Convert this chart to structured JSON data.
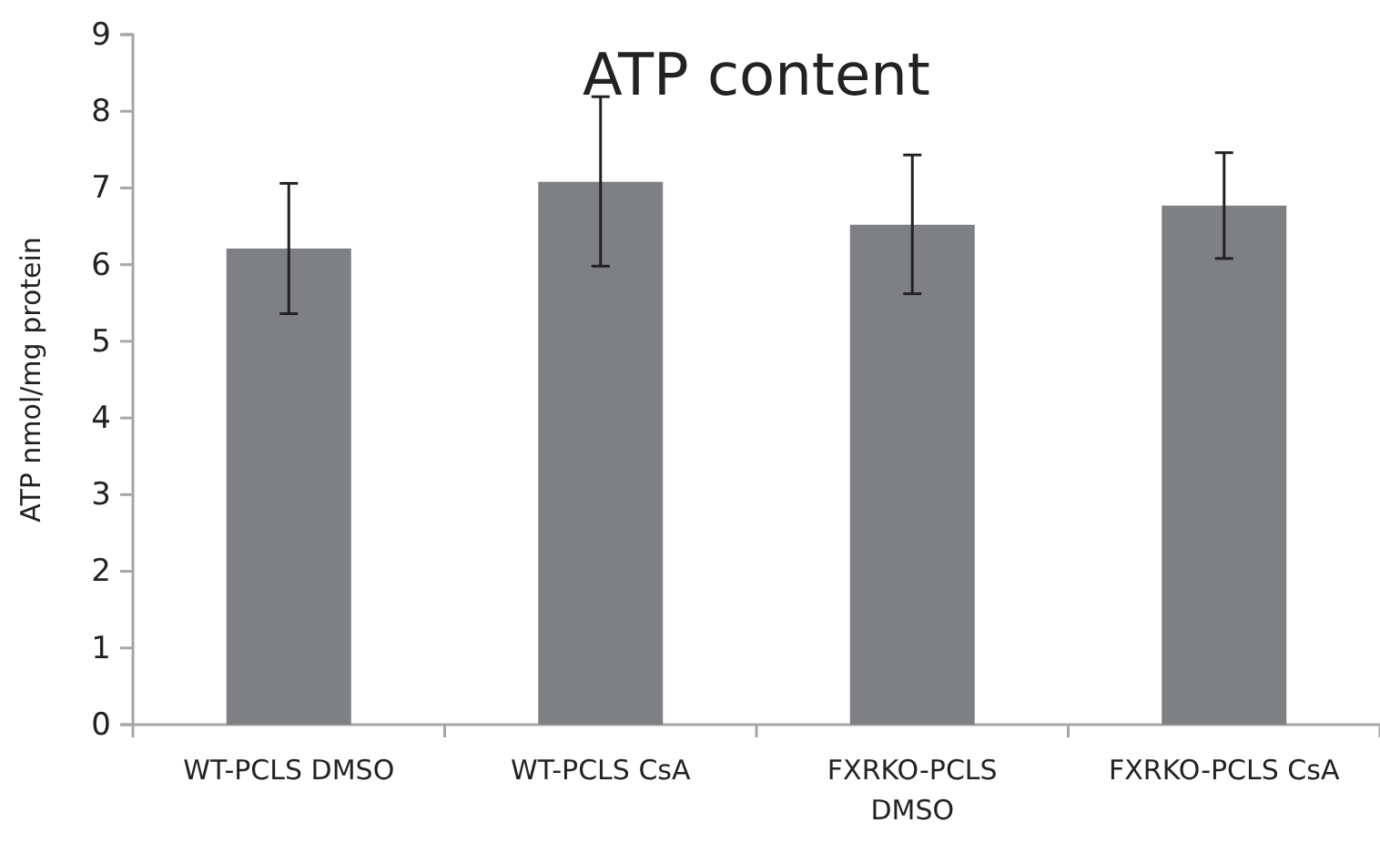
{
  "chart_data": {
    "type": "bar",
    "title": "ATP content",
    "ylabel": "ATP nmol/mg protein",
    "categories": [
      "WT-PCLS DMSO",
      "WT-PCLS CsA",
      "FXRKO-PCLS DMSO",
      "FXRKO-PCLS CsA"
    ],
    "values": [
      6.21,
      7.08,
      6.52,
      6.77
    ],
    "errors": [
      [
        5.36,
        7.06
      ],
      [
        5.98,
        8.19
      ],
      [
        5.62,
        7.43
      ],
      [
        6.08,
        7.46
      ]
    ],
    "color": "#7f8084",
    "ylim": [
      0,
      9
    ],
    "yticks": [
      0,
      1,
      2,
      3,
      4,
      5,
      6,
      7,
      8,
      9
    ],
    "grid": false
  }
}
